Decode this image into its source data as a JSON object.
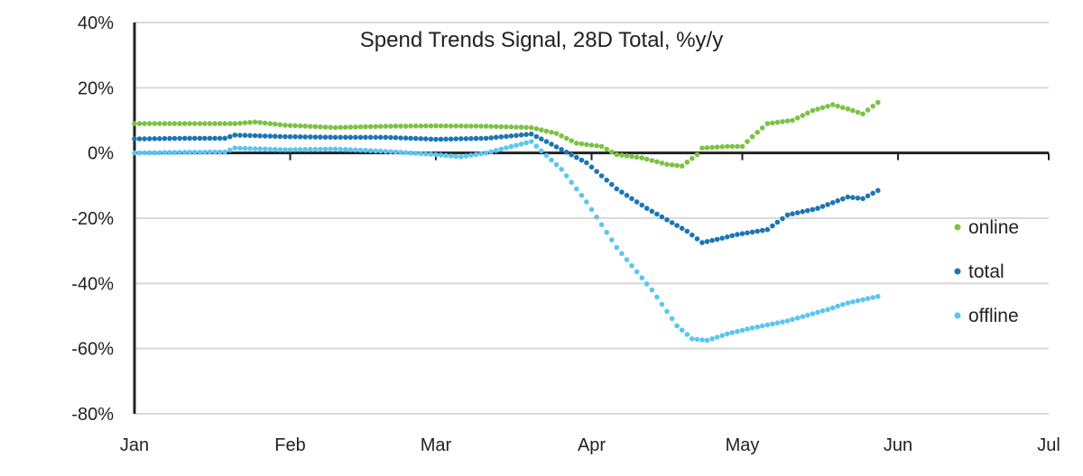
{
  "chart_data": {
    "type": "scatter",
    "title": "Spend Trends Signal, 28D Total, %y/y",
    "xlabel": "",
    "ylabel": "",
    "x_ticks": [
      "Jan",
      "Feb",
      "Mar",
      "Apr",
      "May",
      "Jun",
      "Jul"
    ],
    "x_tick_days": [
      0,
      31,
      60,
      91,
      121,
      152,
      182
    ],
    "xlim": [
      0,
      182
    ],
    "y_ticks": [
      40,
      20,
      0,
      -20,
      -40,
      -60,
      -80
    ],
    "y_tick_labels": [
      "40%",
      "20%",
      "0%",
      "-20%",
      "-40%",
      "-60%",
      "-80%"
    ],
    "ylim": [
      -80,
      40
    ],
    "grid": "horizontal",
    "legend_position": "right",
    "series": [
      {
        "name": "online",
        "color": "#7dc242",
        "points": [
          [
            0,
            9
          ],
          [
            10,
            9
          ],
          [
            20,
            9
          ],
          [
            24,
            9.5
          ],
          [
            30,
            8.5
          ],
          [
            40,
            7.8
          ],
          [
            50,
            8.2
          ],
          [
            60,
            8.3
          ],
          [
            70,
            8.2
          ],
          [
            79,
            7.8
          ],
          [
            84,
            6
          ],
          [
            88,
            3
          ],
          [
            93,
            2
          ],
          [
            96,
            -0.5
          ],
          [
            101,
            -1.5
          ],
          [
            106,
            -3.5
          ],
          [
            109,
            -4
          ],
          [
            112,
            -0.5
          ],
          [
            113,
            1.5
          ],
          [
            118,
            2
          ],
          [
            121,
            2
          ],
          [
            123,
            5
          ],
          [
            126,
            9
          ],
          [
            131,
            10
          ],
          [
            135,
            13
          ],
          [
            139,
            14.8
          ],
          [
            142,
            13.5
          ],
          [
            145,
            12
          ],
          [
            148,
            15.5
          ]
        ]
      },
      {
        "name": "total",
        "color": "#1b75b3",
        "points": [
          [
            0,
            4.3
          ],
          [
            10,
            4.5
          ],
          [
            18,
            4.5
          ],
          [
            20,
            5.5
          ],
          [
            30,
            5
          ],
          [
            40,
            4.8
          ],
          [
            50,
            4.8
          ],
          [
            60,
            4.2
          ],
          [
            70,
            4.5
          ],
          [
            79,
            5.8
          ],
          [
            82,
            3.5
          ],
          [
            90,
            -3
          ],
          [
            96,
            -11
          ],
          [
            102,
            -17
          ],
          [
            110,
            -24
          ],
          [
            113,
            -27.5
          ],
          [
            116,
            -26.5
          ],
          [
            120,
            -25
          ],
          [
            124,
            -24
          ],
          [
            126,
            -23.5
          ],
          [
            130,
            -19
          ],
          [
            136,
            -17
          ],
          [
            142,
            -13.5
          ],
          [
            145,
            -14
          ],
          [
            148,
            -11.5
          ]
        ]
      },
      {
        "name": "offline",
        "color": "#5bc5f2",
        "points": [
          [
            0,
            0
          ],
          [
            10,
            0.2
          ],
          [
            18,
            0.3
          ],
          [
            20,
            1.5
          ],
          [
            30,
            1
          ],
          [
            40,
            1.2
          ],
          [
            50,
            0.5
          ],
          [
            60,
            -0.5
          ],
          [
            65,
            -1.2
          ],
          [
            70,
            0
          ],
          [
            79,
            3.5
          ],
          [
            85,
            -5
          ],
          [
            90,
            -15
          ],
          [
            96,
            -29
          ],
          [
            103,
            -42
          ],
          [
            108,
            -53
          ],
          [
            111,
            -57
          ],
          [
            114,
            -57.5
          ],
          [
            118,
            -55.5
          ],
          [
            122,
            -54
          ],
          [
            130,
            -51.5
          ],
          [
            138,
            -48
          ],
          [
            142,
            -46
          ],
          [
            145,
            -45
          ],
          [
            148,
            -44
          ]
        ]
      }
    ]
  }
}
